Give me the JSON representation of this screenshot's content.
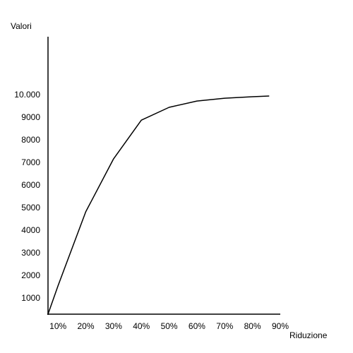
{
  "chart_data": {
    "type": "line",
    "y_label": "Valori",
    "x_label": "Riduzione",
    "x": [
      6.4,
      10,
      20,
      30,
      40,
      50,
      60,
      70,
      80,
      86
    ],
    "series": [
      {
        "color": "#000000",
        "values": [
          300,
          1560,
          4840,
          7190,
          8900,
          9470,
          9750,
          9875,
          9940,
          9970
        ]
      }
    ],
    "xlim": [
      6.4,
      90
    ],
    "ylim": [
      300,
      12600
    ],
    "xticks": [
      {
        "value": 10,
        "label": "10%"
      },
      {
        "value": 20,
        "label": "20%"
      },
      {
        "value": 30,
        "label": "30%"
      },
      {
        "value": 40,
        "label": "40%"
      },
      {
        "value": 50,
        "label": "50%"
      },
      {
        "value": 60,
        "label": "60%"
      },
      {
        "value": 70,
        "label": "70%"
      },
      {
        "value": 80,
        "label": "80%"
      },
      {
        "value": 90,
        "label": "90%"
      }
    ],
    "yticks": [
      1000,
      2000,
      3000,
      4000,
      5000,
      6000,
      7000,
      8000,
      9000,
      {
        "value": 10000,
        "label": "10.000"
      }
    ],
    "grid": false
  }
}
